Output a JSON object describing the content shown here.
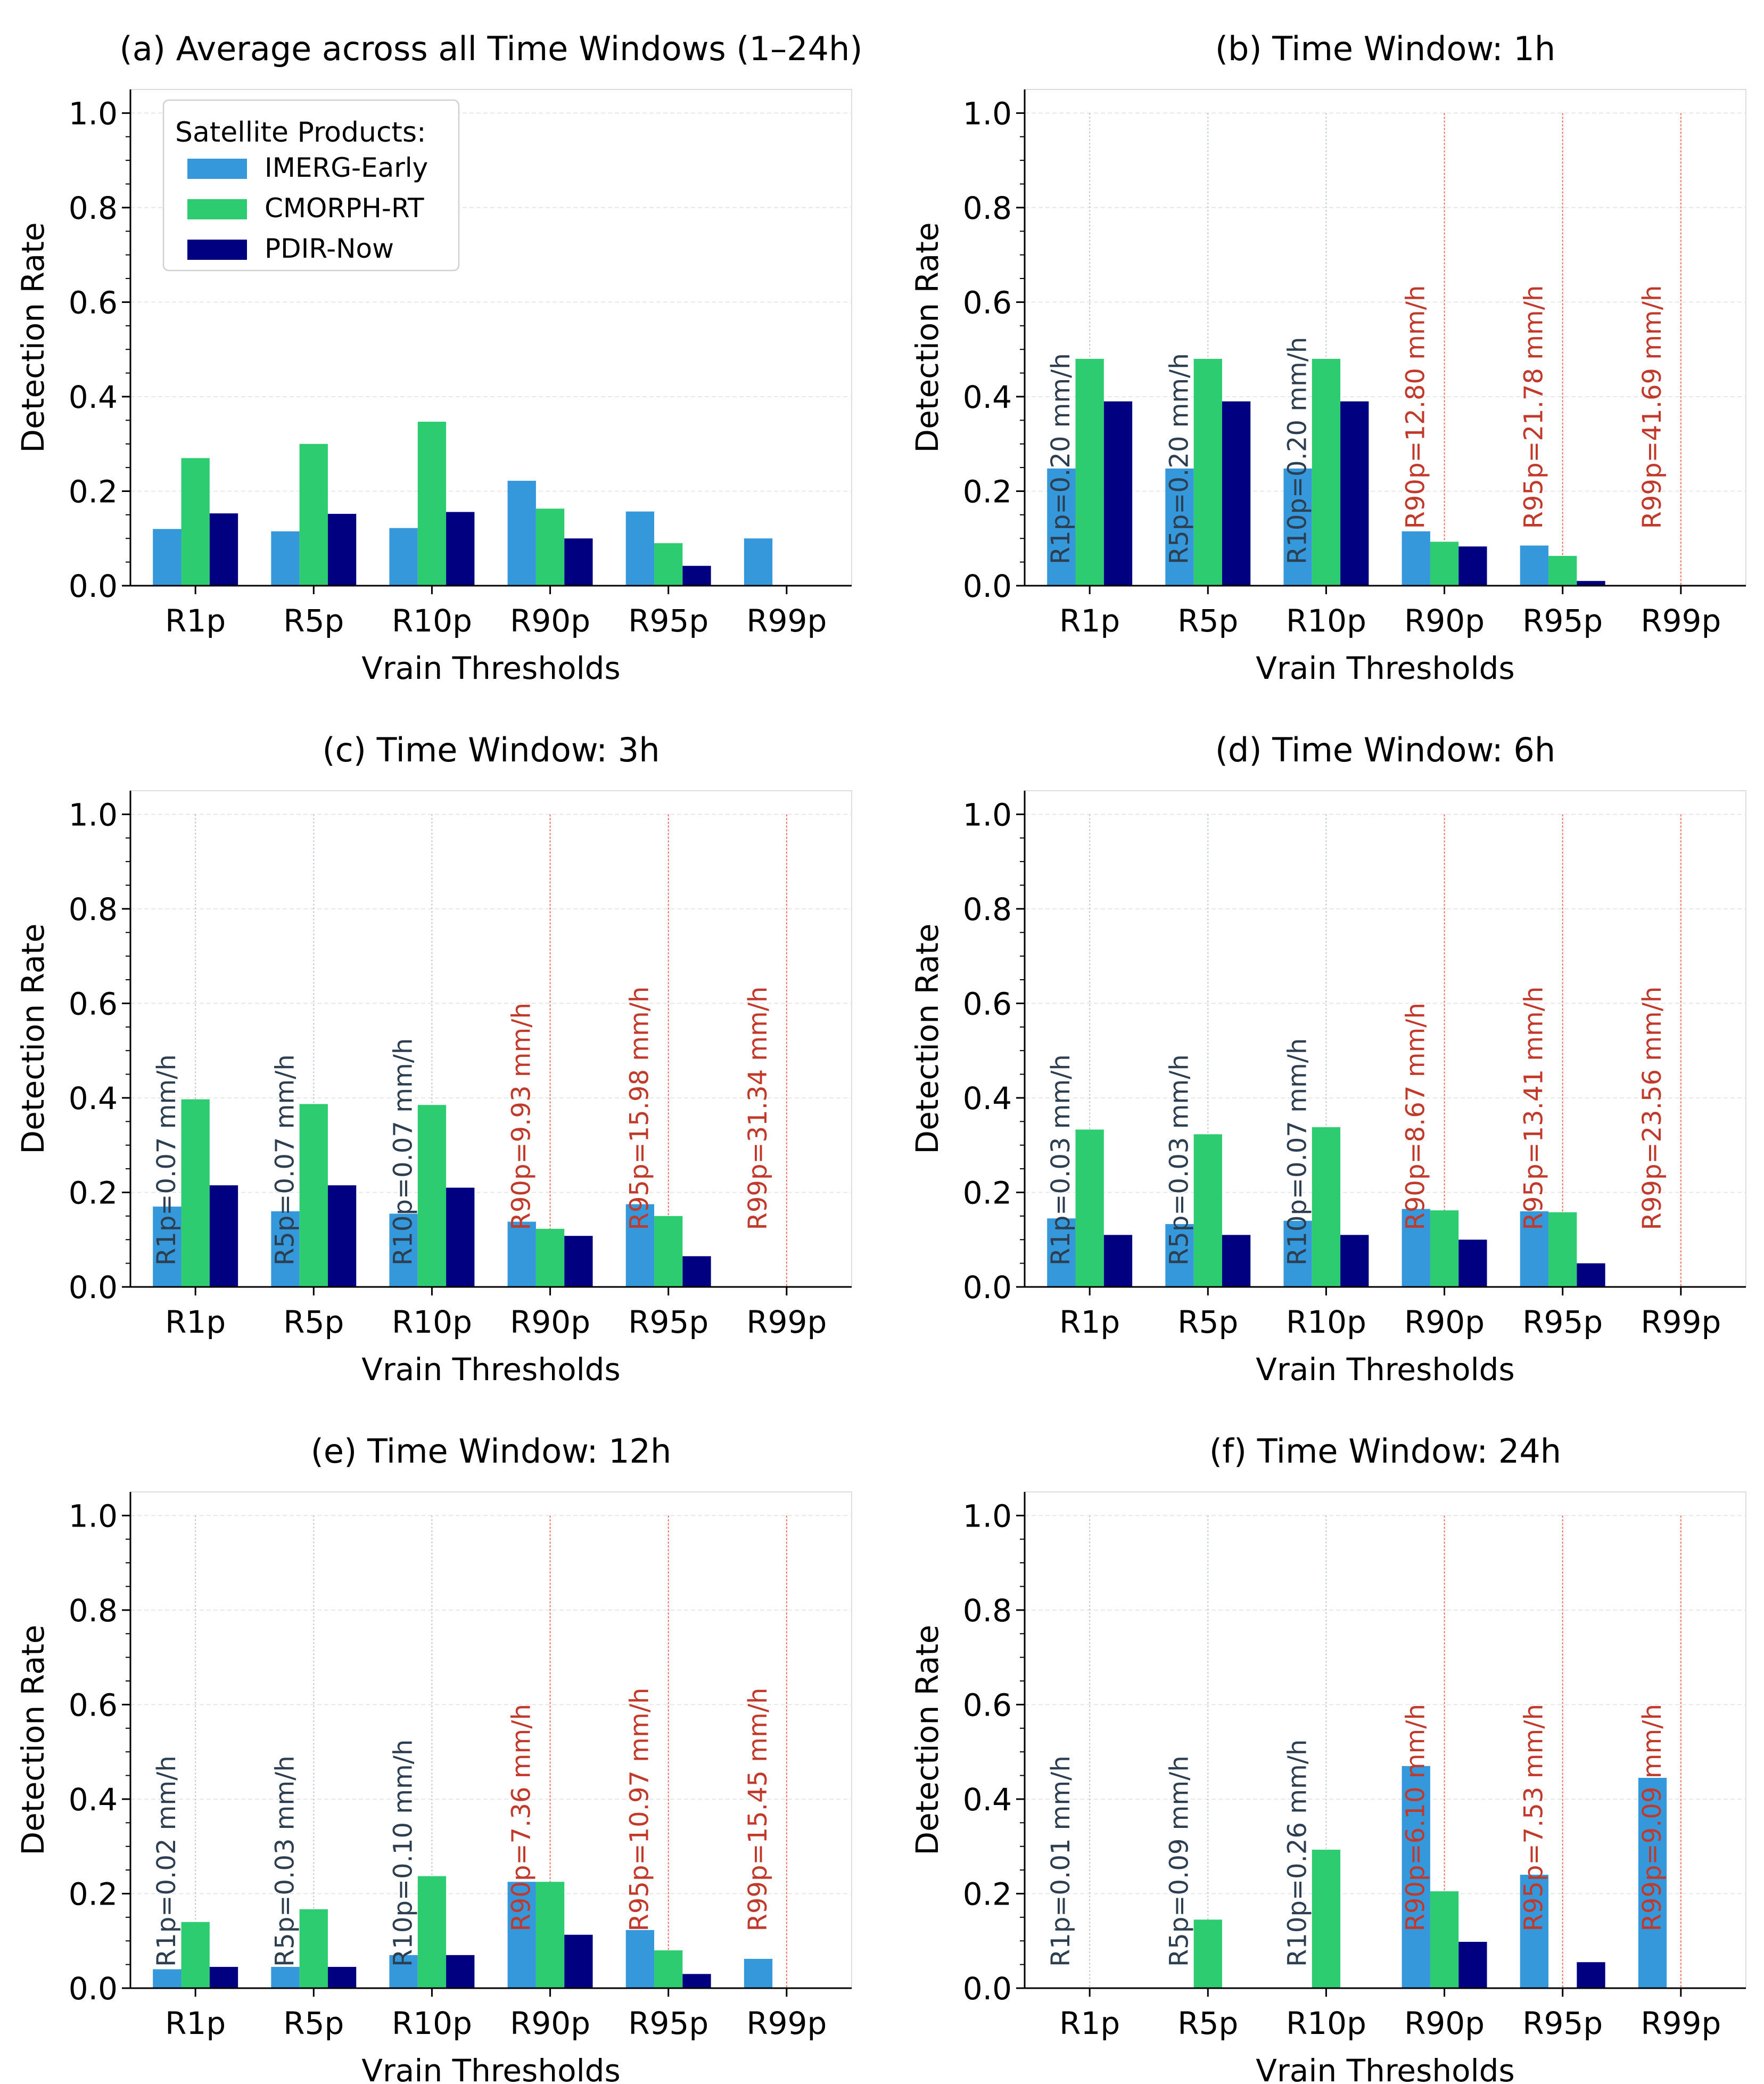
{
  "colors": {
    "IMERG-Early": "#3498db",
    "CMORPH-RT": "#2ecc71",
    "PDIR-Now": "#000080",
    "low_threshold_text": "#2c3e50",
    "high_threshold_text": "#c0392b",
    "low_threshold_line": "#bdc3c7",
    "high_threshold_line": "#e74c3c",
    "grid": "#e8e8e8",
    "axis": "#000000"
  },
  "legend": {
    "title": "Satellite Products:",
    "entries": [
      "IMERG-Early",
      "CMORPH-RT",
      "PDIR-Now"
    ]
  },
  "chart_data": [
    {
      "id": "a",
      "type": "bar",
      "title": "(a) Average across all Time Windows (1–24h)",
      "xlabel": "Vrain Thresholds",
      "ylabel": "Detection Rate",
      "ylim": [
        0,
        1.05
      ],
      "yticks": [
        "0.0",
        "0.2",
        "0.4",
        "0.6",
        "0.8",
        "1.0"
      ],
      "categories": [
        "R1p",
        "R5p",
        "R10p",
        "R90p",
        "R95p",
        "R99p"
      ],
      "series": [
        {
          "name": "IMERG-Early",
          "values": [
            0.12,
            0.115,
            0.122,
            0.222,
            0.157,
            0.1
          ]
        },
        {
          "name": "CMORPH-RT",
          "values": [
            0.27,
            0.3,
            0.347,
            0.163,
            0.09,
            0
          ]
        },
        {
          "name": "PDIR-Now",
          "values": [
            0.153,
            0.152,
            0.156,
            0.1,
            0.042,
            0
          ]
        }
      ],
      "legend": "top-left",
      "thresholds": []
    },
    {
      "id": "b",
      "type": "bar",
      "title": "(b) Time Window: 1h",
      "xlabel": "Vrain Thresholds",
      "ylabel": "Detection Rate",
      "ylim": [
        0,
        1.05
      ],
      "yticks": [
        "0.0",
        "0.2",
        "0.4",
        "0.6",
        "0.8",
        "1.0"
      ],
      "categories": [
        "R1p",
        "R5p",
        "R10p",
        "R90p",
        "R95p",
        "R99p"
      ],
      "series": [
        {
          "name": "IMERG-Early",
          "values": [
            0.248,
            0.248,
            0.248,
            0.115,
            0.085,
            0
          ]
        },
        {
          "name": "CMORPH-RT",
          "values": [
            0.48,
            0.48,
            0.48,
            0.093,
            0.063,
            0
          ]
        },
        {
          "name": "PDIR-Now",
          "values": [
            0.39,
            0.39,
            0.39,
            0.083,
            0.01,
            0
          ]
        }
      ],
      "thresholds": [
        "R1p=0.20 mm/h",
        "R5p=0.20 mm/h",
        "R10p=0.20 mm/h",
        "R90p=12.80 mm/h",
        "R95p=21.78 mm/h",
        "R99p=41.69 mm/h"
      ]
    },
    {
      "id": "c",
      "type": "bar",
      "title": "(c) Time Window: 3h",
      "xlabel": "Vrain Thresholds",
      "ylabel": "Detection Rate",
      "ylim": [
        0,
        1.05
      ],
      "yticks": [
        "0.0",
        "0.2",
        "0.4",
        "0.6",
        "0.8",
        "1.0"
      ],
      "categories": [
        "R1p",
        "R5p",
        "R10p",
        "R90p",
        "R95p",
        "R99p"
      ],
      "series": [
        {
          "name": "IMERG-Early",
          "values": [
            0.17,
            0.16,
            0.155,
            0.138,
            0.175,
            0
          ]
        },
        {
          "name": "CMORPH-RT",
          "values": [
            0.397,
            0.387,
            0.385,
            0.123,
            0.15,
            0
          ]
        },
        {
          "name": "PDIR-Now",
          "values": [
            0.215,
            0.215,
            0.21,
            0.108,
            0.065,
            0
          ]
        }
      ],
      "thresholds": [
        "R1p=0.07 mm/h",
        "R5p=0.07 mm/h",
        "R10p=0.07 mm/h",
        "R90p=9.93 mm/h",
        "R95p=15.98 mm/h",
        "R99p=31.34 mm/h"
      ]
    },
    {
      "id": "d",
      "type": "bar",
      "title": "(d) Time Window: 6h",
      "xlabel": "Vrain Thresholds",
      "ylabel": "Detection Rate",
      "ylim": [
        0,
        1.05
      ],
      "yticks": [
        "0.0",
        "0.2",
        "0.4",
        "0.6",
        "0.8",
        "1.0"
      ],
      "categories": [
        "R1p",
        "R5p",
        "R10p",
        "R90p",
        "R95p",
        "R99p"
      ],
      "series": [
        {
          "name": "IMERG-Early",
          "values": [
            0.145,
            0.133,
            0.14,
            0.165,
            0.16,
            0
          ]
        },
        {
          "name": "CMORPH-RT",
          "values": [
            0.333,
            0.323,
            0.338,
            0.162,
            0.158,
            0
          ]
        },
        {
          "name": "PDIR-Now",
          "values": [
            0.11,
            0.11,
            0.11,
            0.1,
            0.05,
            0
          ]
        }
      ],
      "thresholds": [
        "R1p=0.03 mm/h",
        "R5p=0.03 mm/h",
        "R10p=0.07 mm/h",
        "R90p=8.67 mm/h",
        "R95p=13.41 mm/h",
        "R99p=23.56 mm/h"
      ]
    },
    {
      "id": "e",
      "type": "bar",
      "title": "(e) Time Window: 12h",
      "xlabel": "Vrain Thresholds",
      "ylabel": "Detection Rate",
      "ylim": [
        0,
        1.05
      ],
      "yticks": [
        "0.0",
        "0.2",
        "0.4",
        "0.6",
        "0.8",
        "1.0"
      ],
      "categories": [
        "R1p",
        "R5p",
        "R10p",
        "R90p",
        "R95p",
        "R99p"
      ],
      "series": [
        {
          "name": "IMERG-Early",
          "values": [
            0.04,
            0.045,
            0.07,
            0.225,
            0.123,
            0.062
          ]
        },
        {
          "name": "CMORPH-RT",
          "values": [
            0.14,
            0.167,
            0.237,
            0.225,
            0.08,
            0
          ]
        },
        {
          "name": "PDIR-Now",
          "values": [
            0.045,
            0.045,
            0.07,
            0.113,
            0.03,
            0
          ]
        }
      ],
      "thresholds": [
        "R1p=0.02 mm/h",
        "R5p=0.03 mm/h",
        "R10p=0.10 mm/h",
        "R90p=7.36 mm/h",
        "R95p=10.97 mm/h",
        "R99p=15.45 mm/h"
      ]
    },
    {
      "id": "f",
      "type": "bar",
      "title": "(f) Time Window: 24h",
      "xlabel": "Vrain Thresholds",
      "ylabel": "Detection Rate",
      "ylim": [
        0,
        1.05
      ],
      "yticks": [
        "0.0",
        "0.2",
        "0.4",
        "0.6",
        "0.8",
        "1.0"
      ],
      "categories": [
        "R1p",
        "R5p",
        "R10p",
        "R90p",
        "R95p",
        "R99p"
      ],
      "series": [
        {
          "name": "IMERG-Early",
          "values": [
            0,
            0,
            0,
            0.47,
            0.24,
            0.445
          ]
        },
        {
          "name": "CMORPH-RT",
          "values": [
            0,
            0.145,
            0.293,
            0.205,
            0,
            0
          ]
        },
        {
          "name": "PDIR-Now",
          "values": [
            0,
            0,
            0,
            0.098,
            0.055,
            0
          ]
        }
      ],
      "thresholds": [
        "R1p=0.01 mm/h",
        "R5p=0.09 mm/h",
        "R10p=0.26 mm/h",
        "R90p=6.10 mm/h",
        "R95p=7.53 mm/h",
        "R99p=9.09 mm/h"
      ]
    }
  ]
}
